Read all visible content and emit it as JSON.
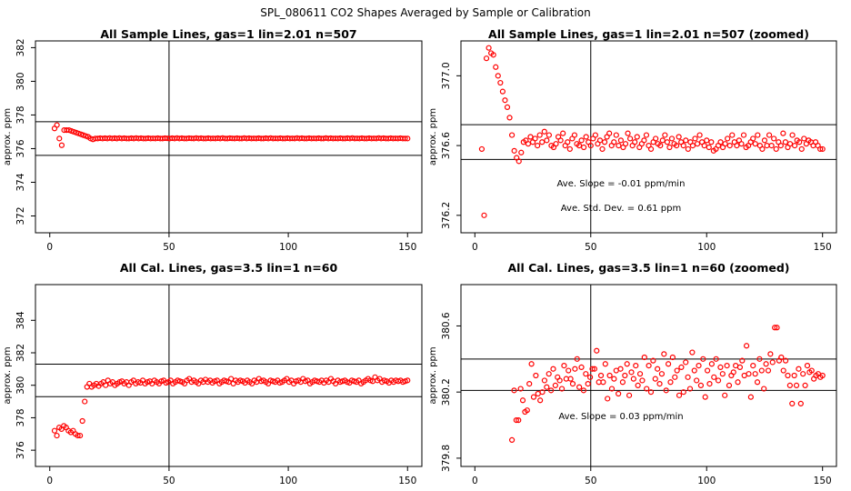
{
  "figure": {
    "title": "SPL_080611  CO2 Shapes Averaged by Sample or Calibration"
  },
  "chart_data": [
    {
      "type": "scatter",
      "title": "All Sample Lines, gas=1 lin=2.01 n=507",
      "xlabel": "",
      "ylabel": "approx. ppm",
      "xlim": [
        -6,
        156
      ],
      "ylim": [
        371,
        382.4
      ],
      "xticks": [
        0,
        50,
        100,
        150
      ],
      "yticks": [
        372,
        374,
        376,
        378,
        380,
        382
      ],
      "vline": 50,
      "hlines": [
        377.6,
        375.6
      ],
      "marker_color": "#ff0000",
      "x_range": [
        2,
        150
      ],
      "y": [
        377.2,
        377.4,
        376.6,
        376.2,
        377.1,
        377.1,
        377.1,
        377.05,
        377.0,
        376.95,
        376.9,
        376.85,
        376.8,
        376.75,
        376.7,
        376.6,
        376.55,
        376.6,
        376.6,
        376.62,
        376.6,
        376.62,
        376.6,
        376.63,
        376.6,
        376.62,
        376.6,
        376.63,
        376.6,
        376.62,
        376.6,
        376.6,
        376.62,
        376.6,
        376.63,
        376.6,
        376.62,
        376.6,
        376.6,
        376.62,
        376.6,
        376.61,
        376.6,
        376.62,
        376.6,
        376.6,
        376.62,
        376.61,
        376.6,
        376.62,
        376.6,
        376.63,
        376.6,
        376.62,
        376.6,
        376.6,
        376.62,
        376.61,
        376.6,
        376.63,
        376.6,
        376.62,
        376.6,
        376.6,
        376.62,
        376.6,
        376.61,
        376.6,
        376.62,
        376.6,
        376.63,
        376.6,
        376.6,
        376.62,
        376.61,
        376.6,
        376.62,
        376.6,
        376.6,
        376.63,
        376.6,
        376.62,
        376.6,
        376.61,
        376.6,
        376.62,
        376.6,
        376.6,
        376.62,
        376.6,
        376.63,
        376.6,
        376.61,
        376.6,
        376.62,
        376.6,
        376.6,
        376.62,
        376.6,
        376.61,
        376.6,
        376.63,
        376.6,
        376.62,
        376.6,
        376.6,
        376.62,
        376.6,
        376.61,
        376.6,
        376.62,
        376.6,
        376.6,
        376.63,
        376.6,
        376.62,
        376.6,
        376.61,
        376.6,
        376.62,
        376.6,
        376.6,
        376.62,
        376.6,
        376.63,
        376.6,
        376.61,
        376.6,
        376.62,
        376.6,
        376.6,
        376.62,
        376.6,
        376.61,
        376.6,
        376.63,
        376.6,
        376.62,
        376.6,
        376.6,
        376.62,
        376.6,
        376.61,
        376.6,
        376.62,
        376.6,
        376.6,
        376.6
      ]
    },
    {
      "type": "scatter",
      "title": "All Sample Lines, gas=1 lin=2.01 n=507 (zoomed)",
      "xlabel": "",
      "ylabel": "approx. ppm",
      "xlim": [
        -6,
        156
      ],
      "ylim": [
        376.1,
        377.2
      ],
      "xticks": [
        0,
        50,
        100,
        150
      ],
      "yticks": [
        376.2,
        376.6,
        377.0
      ],
      "yticklabels": [
        "376.2",
        "376.6",
        "377.0"
      ],
      "vline": 50,
      "hlines": [
        376.72,
        376.52
      ],
      "annotations": [
        "Ave. Slope =  -0.01  ppm/min",
        "Ave. Std. Dev. =  0.61  ppm"
      ],
      "marker_color": "#ff0000",
      "x_range": [
        3,
        150
      ],
      "y": [
        376.58,
        376.2,
        377.1,
        377.16,
        377.13,
        377.12,
        377.05,
        377.0,
        376.96,
        376.91,
        376.86,
        376.82,
        376.76,
        376.66,
        376.57,
        376.53,
        376.51,
        376.56,
        376.62,
        376.63,
        376.61,
        376.65,
        376.62,
        376.64,
        376.6,
        376.66,
        376.62,
        376.68,
        376.63,
        376.66,
        376.6,
        376.59,
        376.61,
        376.65,
        376.63,
        376.67,
        376.6,
        376.62,
        376.58,
        376.64,
        376.66,
        376.61,
        376.6,
        376.63,
        376.59,
        376.65,
        376.62,
        376.6,
        376.64,
        376.66,
        376.61,
        376.63,
        376.58,
        376.62,
        376.65,
        376.67,
        376.6,
        376.62,
        376.66,
        376.6,
        376.63,
        376.59,
        376.61,
        376.67,
        376.64,
        376.6,
        376.62,
        376.65,
        376.59,
        376.61,
        376.63,
        376.66,
        376.6,
        376.58,
        376.62,
        376.64,
        376.61,
        376.6,
        376.63,
        376.66,
        376.62,
        376.59,
        376.64,
        376.61,
        376.6,
        376.65,
        376.62,
        376.6,
        376.63,
        376.58,
        376.62,
        376.6,
        376.64,
        376.61,
        376.66,
        376.62,
        376.6,
        376.63,
        376.59,
        376.62,
        376.57,
        376.58,
        376.6,
        376.62,
        376.59,
        376.61,
        376.64,
        376.6,
        376.66,
        376.62,
        376.6,
        376.63,
        376.61,
        376.66,
        376.59,
        376.6,
        376.62,
        376.64,
        376.61,
        376.66,
        376.6,
        376.58,
        376.63,
        376.6,
        376.66,
        376.6,
        376.64,
        376.58,
        376.62,
        376.6,
        376.67,
        376.62,
        376.59,
        376.61,
        376.66,
        376.6,
        376.63,
        376.62,
        376.58,
        376.64,
        376.61,
        376.63,
        376.62,
        376.6,
        376.62,
        376.6,
        376.58,
        376.58
      ]
    },
    {
      "type": "scatter",
      "title": "All Cal. Lines, gas=3.5 lin=1 n=60",
      "xlabel": "",
      "ylabel": "approx. ppm",
      "xlim": [
        -6,
        156
      ],
      "ylim": [
        375,
        386.2
      ],
      "xticks": [
        0,
        50,
        100,
        150
      ],
      "yticks": [
        376,
        378,
        380,
        382,
        384
      ],
      "vline": 50,
      "hlines": [
        381.3,
        379.3
      ],
      "marker_color": "#ff0000",
      "x_range": [
        2,
        150
      ],
      "y": [
        377.2,
        376.9,
        377.4,
        377.3,
        377.5,
        377.4,
        377.2,
        377.1,
        377.2,
        377.0,
        376.9,
        376.9,
        377.8,
        379.0,
        379.9,
        380.1,
        379.9,
        380.0,
        380.1,
        379.95,
        380.1,
        380.2,
        380.0,
        380.3,
        380.1,
        380.2,
        380.0,
        380.1,
        380.2,
        380.25,
        380.1,
        380.2,
        380.0,
        380.2,
        380.3,
        380.1,
        380.2,
        380.15,
        380.3,
        380.1,
        380.2,
        380.25,
        380.1,
        380.3,
        380.2,
        380.1,
        380.25,
        380.3,
        380.15,
        380.2,
        380.3,
        380.1,
        380.2,
        380.3,
        380.25,
        380.2,
        380.1,
        380.3,
        380.4,
        380.2,
        380.3,
        380.2,
        380.1,
        380.3,
        380.2,
        380.35,
        380.2,
        380.3,
        380.15,
        380.25,
        380.3,
        380.1,
        380.2,
        380.3,
        380.25,
        380.2,
        380.4,
        380.1,
        380.3,
        380.2,
        380.3,
        380.25,
        380.15,
        380.3,
        380.2,
        380.1,
        380.3,
        380.2,
        380.4,
        380.25,
        380.3,
        380.2,
        380.1,
        380.3,
        380.25,
        380.2,
        380.3,
        380.15,
        380.2,
        380.3,
        380.4,
        380.2,
        380.3,
        380.1,
        380.25,
        380.3,
        380.2,
        380.4,
        380.25,
        380.3,
        380.1,
        380.2,
        380.3,
        380.25,
        380.2,
        380.3,
        380.15,
        380.3,
        380.2,
        380.4,
        380.25,
        380.1,
        380.3,
        380.2,
        380.25,
        380.3,
        380.2,
        380.15,
        380.3,
        380.25,
        380.2,
        380.3,
        380.1,
        380.2,
        380.3,
        380.4,
        380.3,
        380.25,
        380.5,
        380.3,
        380.4,
        380.2,
        380.3,
        380.25,
        380.15,
        380.3,
        380.2,
        380.3,
        380.25,
        380.3,
        380.2,
        380.25,
        380.3
      ]
    },
    {
      "type": "scatter",
      "title": "All Cal. Lines, gas=3.5 lin=1 n=60 (zoomed)",
      "xlabel": "",
      "ylabel": "approx. ppm",
      "xlim": [
        -6,
        156
      ],
      "ylim": [
        379.75,
        380.85
      ],
      "xticks": [
        0,
        50,
        100,
        150
      ],
      "yticks": [
        379.8,
        380.2,
        380.6
      ],
      "vline": 50,
      "hlines": [
        380.4,
        380.21
      ],
      "annotations": [
        "Ave. Slope =  0.03  ppm/min"
      ],
      "marker_color": "#ff0000",
      "x_range": [
        16,
        150
      ],
      "y": [
        379.91,
        380.21,
        380.03,
        380.03,
        380.22,
        380.15,
        380.08,
        380.09,
        380.25,
        380.37,
        380.17,
        380.3,
        380.19,
        380.15,
        380.2,
        380.27,
        380.23,
        380.31,
        380.21,
        380.34,
        380.24,
        380.29,
        380.27,
        380.22,
        380.36,
        380.28,
        380.33,
        380.28,
        380.25,
        380.34,
        380.4,
        380.23,
        380.35,
        380.21,
        380.31,
        380.25,
        380.29,
        380.34,
        380.34,
        380.45,
        380.26,
        380.3,
        380.26,
        380.37,
        380.16,
        380.3,
        380.22,
        380.28,
        380.33,
        380.19,
        380.34,
        380.26,
        380.3,
        380.37,
        380.18,
        380.32,
        380.28,
        380.36,
        380.24,
        380.31,
        380.27,
        380.41,
        380.22,
        380.36,
        380.2,
        380.39,
        380.28,
        380.34,
        380.25,
        380.31,
        380.43,
        380.21,
        380.37,
        380.26,
        380.41,
        380.29,
        380.33,
        380.18,
        380.35,
        380.2,
        380.38,
        380.29,
        380.22,
        380.44,
        380.33,
        380.27,
        380.36,
        380.24,
        380.4,
        380.17,
        380.33,
        380.25,
        380.37,
        380.29,
        380.4,
        380.27,
        380.35,
        380.31,
        380.18,
        380.36,
        380.24,
        380.3,
        380.32,
        380.36,
        380.26,
        380.35,
        380.39,
        380.3,
        380.48,
        380.31,
        380.17,
        380.36,
        380.31,
        380.26,
        380.4,
        380.33,
        380.22,
        380.37,
        380.33,
        380.43,
        380.38,
        380.59,
        380.59,
        380.39,
        380.41,
        380.33,
        380.39,
        380.3,
        380.24,
        380.13,
        380.3,
        380.24,
        380.34,
        380.13,
        380.31,
        380.24,
        380.36,
        380.32,
        380.33,
        380.28,
        380.3,
        380.31,
        380.29,
        380.3
      ]
    }
  ]
}
